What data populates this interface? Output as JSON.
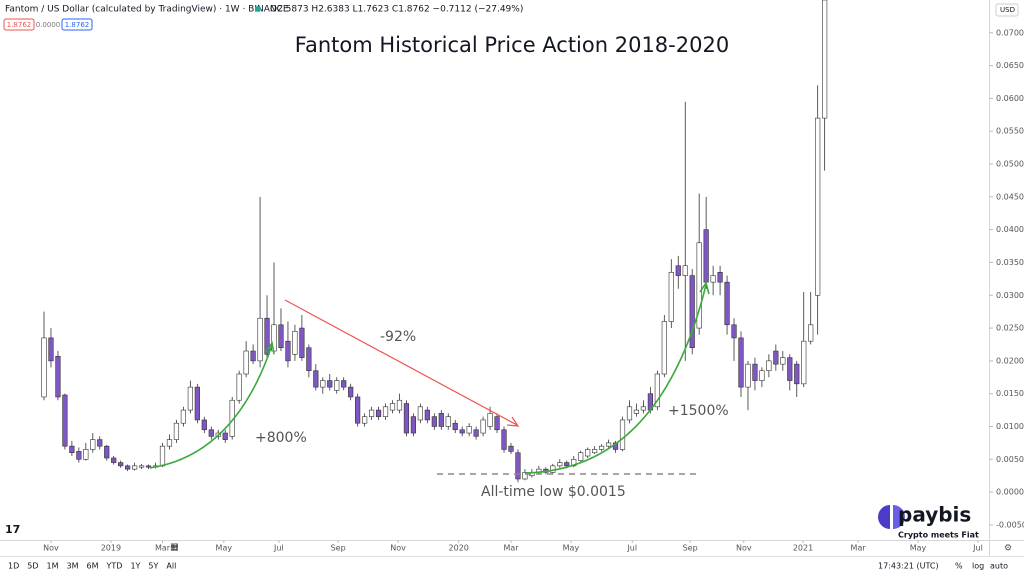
{
  "header": {
    "symbol": "Fantom / US Dollar (calculated by TradingView) · 1W · BINANCE",
    "ohlc": "O2.5873 H2.6383 L1.7623 C1.8762 −0.7112 (−27.49%)",
    "badges": [
      "1.8762",
      "0.0000",
      "1.8762"
    ],
    "currency": "USD"
  },
  "toolbar": {
    "ranges": [
      "1D",
      "5D",
      "1M",
      "3M",
      "6M",
      "YTD",
      "1Y",
      "5Y",
      "All"
    ],
    "clock": "17:43:21 (UTC)",
    "options": [
      "%",
      "log",
      "auto"
    ]
  },
  "brand": {
    "name": "paybis",
    "tagline": "Crypto meets Fiat"
  },
  "chart_data": {
    "type": "candlestick",
    "title": "Fantom Historical Price Action 2018-2020",
    "annotations": [
      "+800%",
      "-92%",
      "+1500%",
      "All-time low $0.0015"
    ],
    "up_color": "#ffffff",
    "down_color": "#7e57c2",
    "ylim": [
      -0.0073,
      0.075
    ],
    "yticks": [
      {
        "value": -0.005,
        "label": "-0.0050"
      },
      {
        "value": 0,
        "label": "0.0000"
      },
      {
        "value": 0.005,
        "label": "0.0050"
      },
      {
        "value": 0.01,
        "label": "0.0100"
      },
      {
        "value": 0.015,
        "label": "0.0150"
      },
      {
        "value": 0.02,
        "label": "0.0200"
      },
      {
        "value": 0.025,
        "label": "0.0250"
      },
      {
        "value": 0.03,
        "label": "0.0300"
      },
      {
        "value": 0.035,
        "label": "0.0350"
      },
      {
        "value": 0.04,
        "label": "0.0400"
      },
      {
        "value": 0.045,
        "label": "0.0450"
      },
      {
        "value": 0.05,
        "label": "0.0500"
      },
      {
        "value": 0.055,
        "label": "0.0550"
      },
      {
        "value": 0.06,
        "label": "0.0600"
      },
      {
        "value": 0.065,
        "label": "0.0650"
      },
      {
        "value": 0.07,
        "label": "0.0700"
      }
    ],
    "xticks": [
      {
        "value": 1,
        "label": "Nov"
      },
      {
        "value": 9.6,
        "label": "2019"
      },
      {
        "value": 17,
        "label": "Mar"
      },
      {
        "value": 25.8,
        "label": "May"
      },
      {
        "value": 33.7,
        "label": "Jul"
      },
      {
        "value": 42.2,
        "label": "Sep"
      },
      {
        "value": 50.8,
        "label": "Nov"
      },
      {
        "value": 59.5,
        "label": "2020"
      },
      {
        "value": 67,
        "label": "Mar"
      },
      {
        "value": 75.6,
        "label": "May"
      },
      {
        "value": 84.4,
        "label": "Jul"
      },
      {
        "value": 92.7,
        "label": "Sep"
      },
      {
        "value": 100.4,
        "label": "Nov"
      },
      {
        "value": 108.9,
        "label": "2021"
      },
      {
        "value": 116.8,
        "label": "Mar"
      },
      {
        "value": 125.4,
        "label": "May"
      },
      {
        "value": 134,
        "label": "Jul"
      }
    ],
    "open": [
      0.0145,
      0.0235,
      0.0207,
      0.0148,
      0.007,
      0.0062,
      0.005,
      0.0065,
      0.008,
      0.007,
      0.0052,
      0.0045,
      0.004,
      0.0035,
      0.0038,
      0.004,
      0.0038,
      0.004,
      0.007,
      0.008,
      0.0105,
      0.0125,
      0.016,
      0.011,
      0.0095,
      0.0085,
      0.009,
      0.0085,
      0.014,
      0.018,
      0.0215,
      0.02,
      0.0265,
      0.0215,
      0.0255,
      0.023,
      0.021,
      0.025,
      0.022,
      0.0185,
      0.016,
      0.017,
      0.0155,
      0.017,
      0.016,
      0.0145,
      0.0105,
      0.0115,
      0.0125,
      0.0115,
      0.0125,
      0.0125,
      0.0135,
      0.0115,
      0.011,
      0.0125,
      0.0115,
      0.012,
      0.01,
      0.0105,
      0.0095,
      0.009,
      0.0095,
      0.009,
      0.01,
      0.0115,
      0.0095,
      0.007,
      0.006,
      0.002,
      0.0025,
      0.003,
      0.0035,
      0.003,
      0.004,
      0.0045,
      0.004,
      0.0048,
      0.0055,
      0.006,
      0.0065,
      0.007,
      0.0075,
      0.0065,
      0.011,
      0.012,
      0.0125,
      0.015,
      0.013,
      0.018,
      0.026,
      0.0345,
      0.033,
      0.033,
      0.025,
      0.04,
      0.032,
      0.0335,
      0.032,
      0.0255,
      0.0235,
      0.016,
      0.0195,
      0.017,
      0.0185,
      0.0215,
      0.0195,
      0.0205,
      0.0195,
      0.0165,
      0.023,
      0.03,
      0.057
    ],
    "high": [
      0.0275,
      0.025,
      0.0215,
      0.015,
      0.0078,
      0.0068,
      0.0075,
      0.009,
      0.0085,
      0.0072,
      0.0055,
      0.0048,
      0.0042,
      0.0045,
      0.0043,
      0.0042,
      0.0045,
      0.0075,
      0.0088,
      0.011,
      0.013,
      0.017,
      0.0165,
      0.0115,
      0.01,
      0.0095,
      0.0095,
      0.0145,
      0.0185,
      0.023,
      0.0225,
      0.045,
      0.03,
      0.035,
      0.028,
      0.026,
      0.0255,
      0.027,
      0.0225,
      0.0195,
      0.0175,
      0.018,
      0.0175,
      0.0175,
      0.0165,
      0.015,
      0.012,
      0.013,
      0.013,
      0.0135,
      0.014,
      0.015,
      0.014,
      0.012,
      0.0135,
      0.013,
      0.012,
      0.0125,
      0.012,
      0.011,
      0.01,
      0.0105,
      0.01,
      0.0115,
      0.013,
      0.012,
      0.01,
      0.0075,
      0.0065,
      0.0035,
      0.0035,
      0.004,
      0.0038,
      0.0043,
      0.005,
      0.0048,
      0.0055,
      0.0063,
      0.0068,
      0.007,
      0.0073,
      0.008,
      0.0078,
      0.0115,
      0.014,
      0.0135,
      0.014,
      0.016,
      0.0185,
      0.027,
      0.0355,
      0.036,
      0.0595,
      0.034,
      0.0455,
      0.045,
      0.0345,
      0.0345,
      0.033,
      0.0265,
      0.0245,
      0.02,
      0.0205,
      0.019,
      0.021,
      0.0225,
      0.0215,
      0.021,
      0.02,
      0.0305,
      0.0305,
      0.062,
      0.08
    ],
    "low": [
      0.014,
      0.019,
      0.014,
      0.0065,
      0.0055,
      0.0045,
      0.0048,
      0.006,
      0.0065,
      0.0048,
      0.0042,
      0.0037,
      0.0032,
      0.0033,
      0.0035,
      0.0035,
      0.0036,
      0.0038,
      0.0065,
      0.0075,
      0.01,
      0.012,
      0.0105,
      0.009,
      0.008,
      0.008,
      0.0075,
      0.008,
      0.0135,
      0.0175,
      0.0195,
      0.019,
      0.0205,
      0.021,
      0.0215,
      0.019,
      0.02,
      0.02,
      0.0175,
      0.0155,
      0.015,
      0.0155,
      0.015,
      0.0155,
      0.014,
      0.01,
      0.01,
      0.011,
      0.011,
      0.011,
      0.012,
      0.012,
      0.0085,
      0.0085,
      0.0105,
      0.0105,
      0.0095,
      0.0095,
      0.0095,
      0.009,
      0.0085,
      0.0085,
      0.008,
      0.0085,
      0.0095,
      0.009,
      0.006,
      0.0058,
      0.0015,
      0.0018,
      0.0022,
      0.0028,
      0.0027,
      0.0028,
      0.0037,
      0.0036,
      0.0038,
      0.0045,
      0.0052,
      0.0058,
      0.0062,
      0.0068,
      0.006,
      0.0062,
      0.0105,
      0.0115,
      0.012,
      0.012,
      0.0125,
      0.0175,
      0.025,
      0.031,
      0.02,
      0.021,
      0.024,
      0.031,
      0.03,
      0.03,
      0.024,
      0.02,
      0.0145,
      0.0125,
      0.0155,
      0.016,
      0.0175,
      0.0185,
      0.0185,
      0.0155,
      0.0145,
      0.016,
      0.0225,
      0.024,
      0.049
    ],
    "close": [
      0.0235,
      0.02,
      0.0145,
      0.007,
      0.006,
      0.005,
      0.0065,
      0.008,
      0.007,
      0.0052,
      0.0045,
      0.004,
      0.0035,
      0.004,
      0.004,
      0.0038,
      0.004,
      0.007,
      0.008,
      0.0105,
      0.0125,
      0.016,
      0.011,
      0.0095,
      0.0085,
      0.009,
      0.008,
      0.014,
      0.018,
      0.0215,
      0.02,
      0.0265,
      0.021,
      0.0255,
      0.022,
      0.02,
      0.0245,
      0.0205,
      0.0185,
      0.016,
      0.017,
      0.016,
      0.017,
      0.016,
      0.0145,
      0.0105,
      0.0115,
      0.0125,
      0.0115,
      0.013,
      0.0135,
      0.014,
      0.009,
      0.009,
      0.013,
      0.011,
      0.01,
      0.01,
      0.0115,
      0.0095,
      0.009,
      0.01,
      0.0085,
      0.011,
      0.012,
      0.0095,
      0.0065,
      0.0062,
      0.002,
      0.003,
      0.003,
      0.0035,
      0.003,
      0.004,
      0.0045,
      0.004,
      0.005,
      0.006,
      0.0065,
      0.0065,
      0.007,
      0.0075,
      0.0065,
      0.011,
      0.013,
      0.0125,
      0.013,
      0.0125,
      0.018,
      0.026,
      0.0335,
      0.033,
      0.0345,
      0.022,
      0.038,
      0.032,
      0.033,
      0.032,
      0.0255,
      0.0235,
      0.016,
      0.0195,
      0.017,
      0.0185,
      0.02,
      0.0195,
      0.0205,
      0.017,
      0.0165,
      0.023,
      0.0255,
      0.057,
      0.075
    ]
  }
}
